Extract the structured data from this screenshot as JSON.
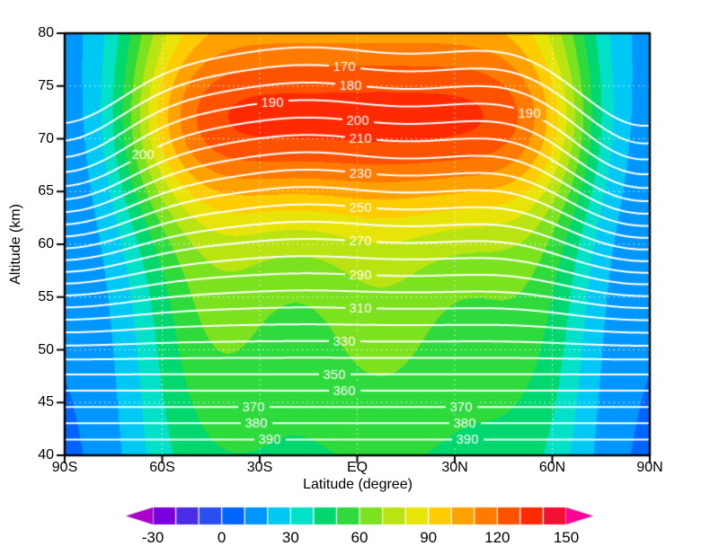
{
  "chart_data": {
    "type": "contour",
    "title": "",
    "xlabel": "Latitude (degree)",
    "ylabel": "Altitude (km)",
    "xlim": [
      -90,
      90
    ],
    "ylim": [
      40,
      80
    ],
    "grid": true,
    "grid_style": "dotted",
    "grid_color": "#ffffff",
    "axis_color": "#000000",
    "x_ticks": [
      {
        "value": -90,
        "label": "90S"
      },
      {
        "value": -60,
        "label": "60S"
      },
      {
        "value": -30,
        "label": "30S"
      },
      {
        "value": 0,
        "label": "EQ"
      },
      {
        "value": 30,
        "label": "30N"
      },
      {
        "value": 60,
        "label": "60N"
      },
      {
        "value": 90,
        "label": "90N"
      }
    ],
    "y_ticks": [
      {
        "value": 40,
        "label": "40"
      },
      {
        "value": 45,
        "label": "45"
      },
      {
        "value": 50,
        "label": "50"
      },
      {
        "value": 55,
        "label": "55"
      },
      {
        "value": 60,
        "label": "60"
      },
      {
        "value": 65,
        "label": "65"
      },
      {
        "value": 70,
        "label": "70"
      },
      {
        "value": 75,
        "label": "75"
      },
      {
        "value": 80,
        "label": "80"
      }
    ],
    "fill": {
      "band_start": -30,
      "band_step": 10,
      "band_end": 150,
      "band_colors": [
        "#aa00c8",
        "#7a00de",
        "#4b2ce6",
        "#2a4ff0",
        "#0064ff",
        "#0096ff",
        "#00c8f5",
        "#00e1c8",
        "#00d76e",
        "#2eda3c",
        "#7ce11e",
        "#b9e412",
        "#e9e407",
        "#ffcc00",
        "#ffa200",
        "#ff7a00",
        "#ff5200",
        "#ff2a00",
        "#f50f32",
        "#ff0096"
      ],
      "lat": [
        -90,
        -75,
        -60,
        -45,
        -30,
        -15,
        0,
        15,
        30,
        45,
        60,
        75,
        90
      ],
      "alt": [
        40,
        45,
        50,
        55,
        60,
        65,
        70,
        75,
        80
      ],
      "values": [
        [
          9,
          17,
          36,
          47,
          50,
          50,
          50,
          50,
          50,
          47,
          36,
          17,
          9
        ],
        [
          10,
          19,
          40,
          51,
          54,
          54,
          54,
          54,
          54,
          51,
          40,
          19,
          10
        ],
        [
          11,
          21,
          43,
          56,
          59,
          59,
          59,
          59,
          59,
          56,
          43,
          21,
          11
        ],
        [
          12,
          23,
          47,
          61,
          64,
          65,
          65,
          65,
          64,
          61,
          47,
          23,
          12
        ],
        [
          13,
          26,
          56,
          72,
          76,
          77,
          77,
          77,
          76,
          72,
          56,
          26,
          13
        ],
        [
          14,
          33,
          74,
          97,
          103,
          103,
          103,
          103,
          103,
          97,
          74,
          33,
          14
        ],
        [
          15,
          40,
          92,
          122,
          130,
          130,
          130,
          130,
          130,
          122,
          92,
          40,
          15
        ],
        [
          16,
          40,
          91,
          120,
          127,
          128,
          128,
          128,
          127,
          120,
          91,
          40,
          16
        ],
        [
          17,
          36,
          77,
          100,
          106,
          106,
          106,
          106,
          106,
          100,
          77,
          36,
          17
        ]
      ]
    },
    "fill_model": {
      "base0": 50,
      "base1": 0.9,
      "bump_amp": 55,
      "bump_alt": 71.5,
      "bump_width": 8.5,
      "edge0": 8,
      "edge1": 0.2,
      "lat_scale": 70,
      "lat_power": 6,
      "wiggle_amp": 4,
      "wiggle_alt": 53,
      "wiggle_width": 12,
      "wiggle_freq": 0.12,
      "wiggle_phase": 0.7
    },
    "contour_lines": {
      "color": "#ffffff",
      "width": 2,
      "level_min": 160,
      "level_max": 390,
      "level_step": 10,
      "label_color": "#ffffff",
      "labels": [
        {
          "text": "170",
          "lat": -4,
          "alt": 76.6
        },
        {
          "text": "180",
          "lat": -2,
          "alt": 74.2
        },
        {
          "text": "190",
          "lat": -26,
          "alt": 72.1
        },
        {
          "text": "190",
          "lat": 53,
          "alt": 72.2
        },
        {
          "text": "200",
          "lat": -66,
          "alt": 67.3
        },
        {
          "text": "200",
          "lat": 0,
          "alt": 70.3
        },
        {
          "text": "210",
          "lat": 1,
          "alt": 68.2
        },
        {
          "text": "230",
          "lat": 1,
          "alt": 65.3
        },
        {
          "text": "250",
          "lat": 1,
          "alt": 62.6
        },
        {
          "text": "270",
          "lat": 1,
          "alt": 60.1
        },
        {
          "text": "290",
          "lat": 1,
          "alt": 57.2
        },
        {
          "text": "310",
          "lat": 1,
          "alt": 54.5
        },
        {
          "text": "330",
          "lat": -4,
          "alt": 51.8
        },
        {
          "text": "350",
          "lat": -7,
          "alt": 48.7
        },
        {
          "text": "360",
          "lat": -4,
          "alt": 47.1
        },
        {
          "text": "370",
          "lat": -32,
          "alt": 45.3
        },
        {
          "text": "370",
          "lat": 32,
          "alt": 45.3
        },
        {
          "text": "380",
          "lat": -31,
          "alt": 43.6
        },
        {
          "text": "380",
          "lat": 33,
          "alt": 43.6
        },
        {
          "text": "390",
          "lat": -27,
          "alt": 41.9
        },
        {
          "text": "390",
          "lat": 34,
          "alt": 42.0
        }
      ]
    },
    "line_model": {
      "v0": 390,
      "v1": -6.52,
      "v2": 0.00765,
      "alt_ref": 41.5,
      "pole_amp": 7,
      "pole_width": 28,
      "ramp_start": 47,
      "ramp_span": 23,
      "wiggle_amp": 0.3,
      "wiggle_freq": 0.1
    },
    "colorbar": {
      "tick_labels": [
        "-30",
        "0",
        "30",
        "60",
        "90",
        "120",
        "150"
      ],
      "tick_values": [
        -30,
        0,
        30,
        60,
        90,
        120,
        150
      ],
      "arrow_ends": true
    }
  }
}
